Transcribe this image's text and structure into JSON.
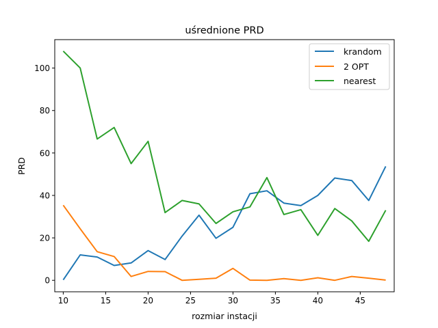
{
  "chart_data": {
    "type": "line",
    "title": "uśrednione PRD",
    "xlabel": "rozmiar instacji",
    "ylabel": "PRD",
    "xlim": [
      9.0,
      49.0
    ],
    "ylim": [
      -5.4,
      113.4
    ],
    "x_ticks": [
      10,
      15,
      20,
      25,
      30,
      35,
      40,
      45
    ],
    "y_ticks": [
      0,
      20,
      40,
      60,
      80,
      100
    ],
    "grid": false,
    "legend_position": "upper right",
    "x": [
      10,
      12,
      14,
      16,
      18,
      20,
      22,
      24,
      26,
      28,
      30,
      32,
      34,
      36,
      38,
      40,
      42,
      44,
      46,
      48
    ],
    "series": [
      {
        "name": "krandom",
        "color": "#1f77b4",
        "values": [
          0.2,
          12.0,
          11.0,
          7.0,
          8.2,
          14.0,
          9.8,
          20.8,
          30.7,
          19.8,
          25.0,
          40.8,
          42.2,
          36.4,
          35.2,
          40.0,
          48.2,
          47.0,
          37.6,
          53.7
        ]
      },
      {
        "name": "2 OPT",
        "color": "#ff7f0e",
        "values": [
          35.4,
          24.3,
          13.5,
          11.2,
          1.8,
          4.2,
          4.1,
          0.0,
          0.5,
          1.0,
          5.6,
          0.1,
          0.0,
          0.8,
          0.0,
          1.2,
          0.0,
          1.8,
          1.0,
          0.1
        ]
      },
      {
        "name": "nearest",
        "color": "#2ca02c",
        "values": [
          108.0,
          100.0,
          66.6,
          72.0,
          55.0,
          65.5,
          31.9,
          37.6,
          36.0,
          26.8,
          32.3,
          34.6,
          48.4,
          31.0,
          33.3,
          21.2,
          33.8,
          28.0,
          18.4,
          33.0
        ]
      }
    ]
  }
}
